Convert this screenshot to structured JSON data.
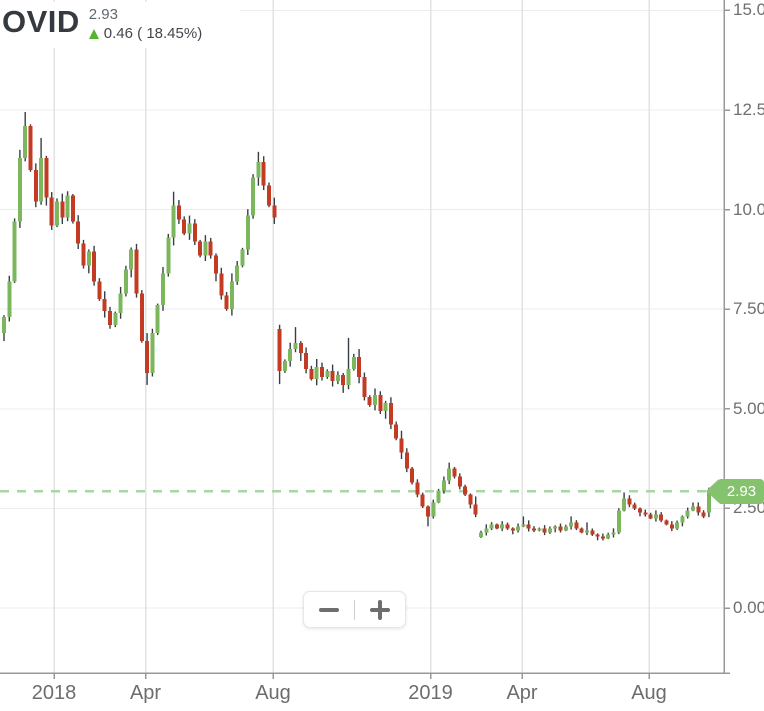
{
  "header": {
    "symbol": "OVID",
    "price": "2.93",
    "change": "0.46 ( 18.45%)",
    "up_arrow_icon": "up-arrow-icon",
    "up_color": "#56b52f"
  },
  "price_bubble": {
    "label": "2.93",
    "color": "#85c26e"
  },
  "zoom_controls": {
    "zoom_out_icon": "minus-icon",
    "zoom_in_icon": "plus-icon"
  },
  "chart_data": {
    "type": "candlestick",
    "symbol": "OVID",
    "last_price": 2.93,
    "change": 0.46,
    "change_percent": "18.45%",
    "price_line": {
      "value": 2.93,
      "label": "2.93",
      "style": "dashed"
    },
    "y_axis": {
      "min": 0,
      "max": 15,
      "ticks": [
        {
          "label": "15.00",
          "value": 15
        },
        {
          "label": "12.50",
          "value": 12.5
        },
        {
          "label": "10.00",
          "value": 10
        },
        {
          "label": "7.50",
          "value": 7.5
        },
        {
          "label": "5.00",
          "value": 5
        },
        {
          "label": "2.50",
          "value": 2.5
        },
        {
          "label": "0.00",
          "value": 0
        }
      ]
    },
    "x_axis": {
      "ticks": [
        "2018",
        "Apr",
        "Aug",
        "2019",
        "Apr",
        "Aug"
      ]
    },
    "series": {
      "closes": [
        7.3,
        8.2,
        9.7,
        11.3,
        12.1,
        11.0,
        10.2,
        11.3,
        10.3,
        9.6,
        10.2,
        9.8,
        10.35,
        9.7,
        9.15,
        8.6,
        8.95,
        8.2,
        7.75,
        7.45,
        7.1,
        7.4,
        7.9,
        8.5,
        9.0,
        7.9,
        6.7,
        5.9,
        6.9,
        7.6,
        8.4,
        9.3,
        10.1,
        9.75,
        9.4,
        9.65,
        9.2,
        8.85,
        9.2,
        8.85,
        8.4,
        7.85,
        7.5,
        8.2,
        8.6,
        9.0,
        9.85,
        10.8,
        11.2,
        10.6,
        10.1,
        9.8,
        5.95,
        6.2,
        6.5,
        6.65,
        6.4,
        6.0,
        5.75,
        6.05,
        5.8,
        5.95,
        5.7,
        5.85,
        5.6,
        6.0,
        6.3,
        5.8,
        5.3,
        5.1,
        5.35,
        4.95,
        5.15,
        4.6,
        4.25,
        3.9,
        3.5,
        3.15,
        2.85,
        2.55,
        2.3,
        2.65,
        2.95,
        3.2,
        3.5,
        3.3,
        3.05,
        2.85,
        2.6,
        2.35,
        1.9,
        2.0,
        2.1,
        2.0,
        2.1,
        2.0,
        1.95,
        2.05,
        2.1,
        2.0,
        1.95,
        2.0,
        1.9,
        2.0,
        2.05,
        1.95,
        2.05,
        2.15,
        2.0,
        1.9,
        1.95,
        1.85,
        1.8,
        1.75,
        1.85,
        1.9,
        2.45,
        2.75,
        2.6,
        2.5,
        2.4,
        2.35,
        2.25,
        2.35,
        2.2,
        2.1,
        2.0,
        2.15,
        2.3,
        2.45,
        2.55,
        2.4,
        2.3,
        2.93
      ],
      "open_overrides": {
        "0": 6.9,
        "52": 7.0,
        "90": 1.78,
        "133": 2.4
      },
      "high_overrides": {
        "4": 12.45,
        "7": 11.8,
        "32": 10.45,
        "48": 11.45,
        "55": 7.05,
        "65": 6.78,
        "84": 3.65,
        "89": 2.8,
        "98": 2.3,
        "107": 2.3,
        "110": 2.15,
        "117": 2.9,
        "130": 2.65,
        "133": 3.02
      },
      "low_overrides": {
        "27": 5.6,
        "52": 5.62,
        "80": 2.05,
        "89": 2.28,
        "133": 2.28
      }
    },
    "colors": {
      "up": "#7cb75e",
      "down": "#c43b24",
      "wick": "#373f45",
      "grid_h": "#ececec",
      "grid_v": "#e2e2e2",
      "axis": "#989898",
      "price_line": "#a9d6a4",
      "background": "#ffffff"
    },
    "legend_position": "top-left",
    "grid": true
  }
}
